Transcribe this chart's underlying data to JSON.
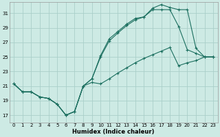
{
  "xlabel": "Humidex (Indice chaleur)",
  "xlim": [
    -0.5,
    23.5
  ],
  "ylim": [
    16.0,
    32.5
  ],
  "xticks": [
    0,
    1,
    2,
    3,
    4,
    5,
    6,
    7,
    8,
    9,
    10,
    11,
    12,
    13,
    14,
    15,
    16,
    17,
    18,
    19,
    20,
    21,
    22,
    23
  ],
  "yticks": [
    17,
    19,
    21,
    23,
    25,
    27,
    29,
    31
  ],
  "bg_color": "#cdeae4",
  "grid_color": "#aacfc9",
  "line_color": "#1a6e5e",
  "line1_x": [
    0,
    1,
    2,
    3,
    4,
    5,
    6,
    7,
    8,
    9,
    10,
    11,
    12,
    13,
    14,
    15,
    16,
    17,
    18,
    19,
    20,
    21,
    22,
    23
  ],
  "line1_y": [
    21.3,
    20.2,
    20.2,
    19.5,
    19.3,
    18.5,
    17.0,
    17.5,
    21.0,
    22.0,
    25.2,
    27.5,
    28.5,
    29.5,
    30.3,
    30.5,
    31.5,
    31.5,
    31.5,
    29.2,
    26.0,
    25.5,
    25.0,
    25.0
  ],
  "line2_x": [
    0,
    1,
    2,
    3,
    4,
    5,
    6,
    7,
    8,
    9,
    10,
    11,
    12,
    13,
    14,
    15,
    16,
    17,
    18,
    19,
    20,
    21,
    22,
    23
  ],
  "line2_y": [
    21.3,
    20.2,
    20.2,
    19.5,
    19.3,
    18.5,
    17.0,
    17.5,
    21.0,
    22.0,
    25.0,
    27.2,
    28.3,
    29.3,
    30.1,
    30.5,
    31.7,
    32.2,
    31.8,
    31.5,
    31.5,
    26.2,
    25.0,
    25.0
  ],
  "line3_x": [
    0,
    1,
    2,
    3,
    4,
    5,
    6,
    7,
    8,
    9,
    10,
    11,
    12,
    13,
    14,
    15,
    16,
    17,
    18,
    19,
    20,
    21,
    22,
    23
  ],
  "line3_y": [
    21.3,
    20.2,
    20.2,
    19.5,
    19.3,
    18.5,
    17.0,
    17.5,
    21.0,
    21.5,
    21.3,
    22.0,
    22.8,
    23.5,
    24.2,
    24.8,
    25.3,
    25.8,
    26.3,
    23.8,
    24.2,
    24.5,
    25.0,
    25.0
  ]
}
